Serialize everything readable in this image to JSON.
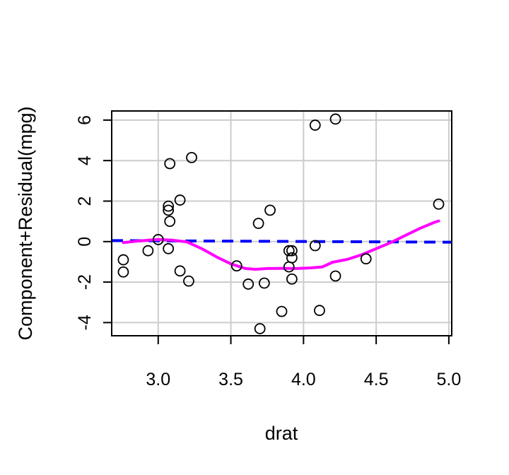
{
  "chart_data": {
    "type": "scatter",
    "title": "",
    "xlabel": "drat",
    "ylabel": "Component+Residual(mpg)",
    "xlim": [
      2.68,
      5.02
    ],
    "ylim": [
      -4.65,
      6.45
    ],
    "xticks": [
      3.0,
      3.5,
      4.0,
      4.5,
      5.0
    ],
    "xtick_labels": [
      "3.0",
      "3.5",
      "4.0",
      "4.5",
      "5.0"
    ],
    "yticks": [
      -4,
      -2,
      0,
      2,
      4,
      6
    ],
    "ytick_labels": [
      "-4",
      "-2",
      "0",
      "2",
      "4",
      "6"
    ],
    "grid": true,
    "colors": {
      "points": "#000000",
      "reference_line": "#0000ff",
      "smooth_line": "#ff00ff",
      "grid": "#cccccc"
    },
    "points": [
      {
        "x": 2.76,
        "y": -0.9
      },
      {
        "x": 2.76,
        "y": -1.5
      },
      {
        "x": 2.93,
        "y": -0.45
      },
      {
        "x": 3.0,
        "y": 0.1
      },
      {
        "x": 3.07,
        "y": 1.75
      },
      {
        "x": 3.07,
        "y": 1.55
      },
      {
        "x": 3.07,
        "y": -0.35
      },
      {
        "x": 3.08,
        "y": 1.0
      },
      {
        "x": 3.08,
        "y": 3.85
      },
      {
        "x": 3.15,
        "y": 2.05
      },
      {
        "x": 3.15,
        "y": -1.45
      },
      {
        "x": 3.21,
        "y": -1.95
      },
      {
        "x": 3.23,
        "y": 4.15
      },
      {
        "x": 3.54,
        "y": -1.2
      },
      {
        "x": 3.62,
        "y": -2.1
      },
      {
        "x": 3.69,
        "y": 0.9
      },
      {
        "x": 3.7,
        "y": -4.3
      },
      {
        "x": 3.73,
        "y": -2.05
      },
      {
        "x": 3.77,
        "y": 1.55
      },
      {
        "x": 3.85,
        "y": -3.45
      },
      {
        "x": 3.9,
        "y": -0.45
      },
      {
        "x": 3.9,
        "y": -1.25
      },
      {
        "x": 3.92,
        "y": -0.45
      },
      {
        "x": 3.92,
        "y": -0.8
      },
      {
        "x": 3.92,
        "y": -1.85
      },
      {
        "x": 4.08,
        "y": -0.2
      },
      {
        "x": 4.08,
        "y": 5.75
      },
      {
        "x": 4.11,
        "y": -3.4
      },
      {
        "x": 4.22,
        "y": 6.05
      },
      {
        "x": 4.22,
        "y": -1.7
      },
      {
        "x": 4.43,
        "y": -0.85
      },
      {
        "x": 4.93,
        "y": 1.85
      }
    ],
    "reference_line": [
      {
        "x": 2.68,
        "y": 0.05
      },
      {
        "x": 5.02,
        "y": -0.03
      }
    ],
    "smooth_line": [
      {
        "x": 2.76,
        "y": -0.05
      },
      {
        "x": 2.85,
        "y": 0.02
      },
      {
        "x": 2.95,
        "y": 0.08
      },
      {
        "x": 3.0,
        "y": 0.1
      },
      {
        "x": 3.1,
        "y": 0.07
      },
      {
        "x": 3.2,
        "y": -0.02
      },
      {
        "x": 3.3,
        "y": -0.35
      },
      {
        "x": 3.4,
        "y": -0.75
      },
      {
        "x": 3.5,
        "y": -1.1
      },
      {
        "x": 3.6,
        "y": -1.33
      },
      {
        "x": 3.67,
        "y": -1.37
      },
      {
        "x": 3.75,
        "y": -1.33
      },
      {
        "x": 3.85,
        "y": -1.32
      },
      {
        "x": 3.95,
        "y": -1.33
      },
      {
        "x": 4.05,
        "y": -1.3
      },
      {
        "x": 4.13,
        "y": -1.25
      },
      {
        "x": 4.2,
        "y": -1.02
      },
      {
        "x": 4.3,
        "y": -0.88
      },
      {
        "x": 4.4,
        "y": -0.65
      },
      {
        "x": 4.5,
        "y": -0.35
      },
      {
        "x": 4.6,
        "y": -0.05
      },
      {
        "x": 4.7,
        "y": 0.3
      },
      {
        "x": 4.8,
        "y": 0.65
      },
      {
        "x": 4.9,
        "y": 0.95
      },
      {
        "x": 4.93,
        "y": 1.02
      }
    ]
  }
}
